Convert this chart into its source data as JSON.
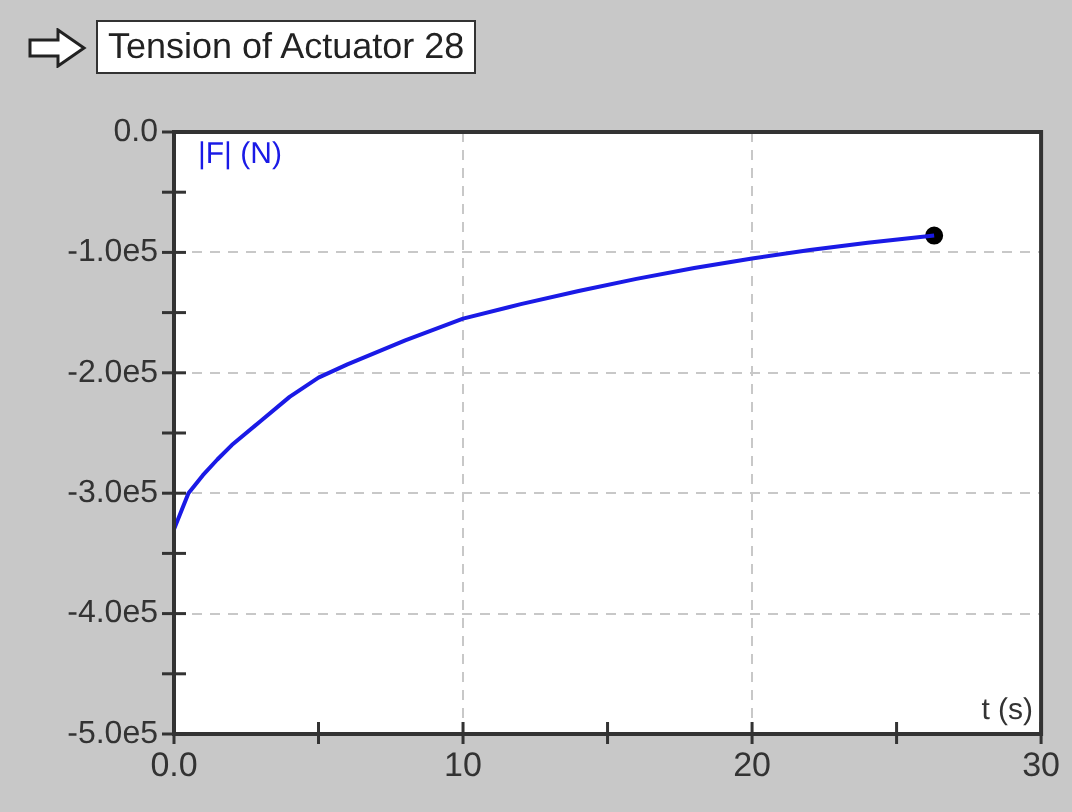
{
  "chart_data": {
    "type": "line",
    "title": "Tension of Actuator 28",
    "xlabel": "t (s)",
    "ylabel": "|F| (N)",
    "xlim": [
      0,
      30
    ],
    "xticks": [
      {
        "value": 0,
        "label": "0.0"
      },
      {
        "value": 5,
        "label": null
      },
      10,
      {
        "value": 15,
        "label": null
      },
      20,
      {
        "value": 25,
        "label": null
      },
      30
    ],
    "ylim": [
      -500000,
      0
    ],
    "yticks": [
      {
        "value": 0,
        "label": "0.0"
      },
      {
        "value": -50000,
        "label": null
      },
      {
        "value": -100000,
        "label": "-1.0e5"
      },
      {
        "value": -150000,
        "label": null
      },
      {
        "value": -200000,
        "label": "-2.0e5"
      },
      {
        "value": -250000,
        "label": null
      },
      {
        "value": -300000,
        "label": "-3.0e5"
      },
      {
        "value": -350000,
        "label": null
      },
      {
        "value": -400000,
        "label": "-4.0e5"
      },
      {
        "value": -450000,
        "label": null
      },
      {
        "value": -500000,
        "label": "-5.0e5"
      }
    ],
    "grid": true,
    "legend": false,
    "marker": "none",
    "series": [
      {
        "color": "#1a1ae6",
        "x": [
          0,
          0.5,
          1,
          1.5,
          2,
          3,
          4,
          5,
          6,
          8,
          10,
          12,
          14,
          16,
          18,
          20,
          22,
          24,
          26.3
        ],
        "values": [
          -330000,
          -300000,
          -285000,
          -272000,
          -260000,
          -240000,
          -220000,
          -204000,
          -193000,
          -173000,
          -155000,
          -143000,
          -132000,
          -122000,
          -113000,
          -105000,
          -98000,
          -92000,
          -86000
        ]
      },
      {
        "type": "scatter",
        "color": "#000000",
        "marker": "circle",
        "x": [
          26.3
        ],
        "values": [
          -86000
        ]
      }
    ]
  }
}
